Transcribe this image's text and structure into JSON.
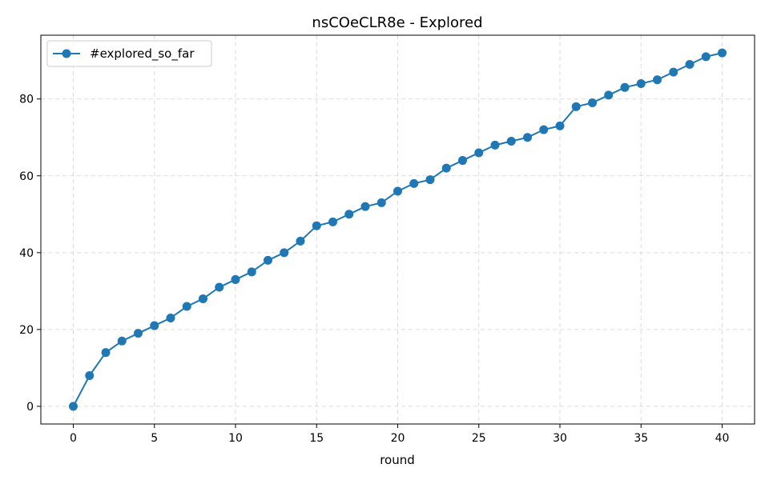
{
  "chart_data": {
    "type": "line",
    "title": "nsCOeCLR8e - Explored",
    "xlabel": "round",
    "ylabel": "",
    "xlim": [
      -2,
      42
    ],
    "ylim": [
      -4.6,
      96.6
    ],
    "xticks": [
      0,
      5,
      10,
      15,
      20,
      25,
      30,
      35,
      40
    ],
    "yticks": [
      0,
      20,
      40,
      60,
      80
    ],
    "grid": true,
    "legend": "top-left",
    "color": "#1f77b4",
    "series": [
      {
        "name": "#explored_so_far",
        "x": [
          0,
          1,
          2,
          3,
          4,
          5,
          6,
          7,
          8,
          9,
          10,
          11,
          12,
          13,
          14,
          15,
          16,
          17,
          18,
          19,
          20,
          21,
          22,
          23,
          24,
          25,
          26,
          27,
          28,
          29,
          30,
          31,
          32,
          33,
          34,
          35,
          36,
          37,
          38,
          39,
          40
        ],
        "values": [
          0,
          8,
          14,
          17,
          19,
          21,
          23,
          26,
          28,
          31,
          33,
          35,
          38,
          40,
          43,
          47,
          48,
          50,
          52,
          53,
          56,
          58,
          59,
          62,
          64,
          66,
          68,
          69,
          70,
          72,
          73,
          78,
          79,
          81,
          83,
          84,
          85,
          87,
          89,
          91,
          92
        ]
      }
    ]
  }
}
